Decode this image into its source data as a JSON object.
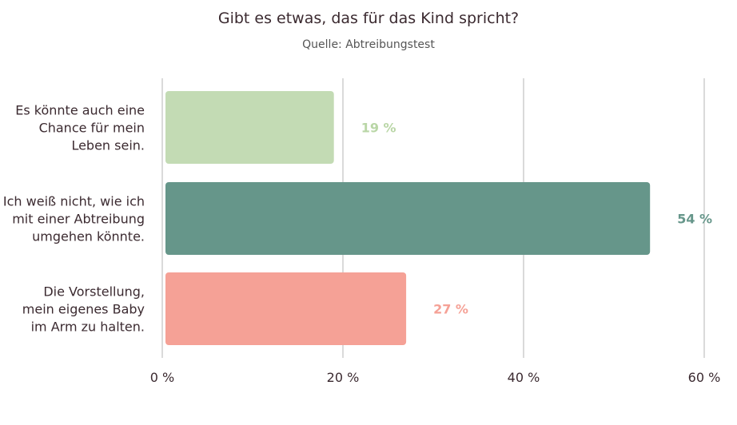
{
  "chart_data": {
    "type": "bar",
    "orientation": "horizontal",
    "title": "Gibt es etwas, das für das Kind spricht?",
    "subtitle": "Quelle: Abtreibungstest",
    "categories": [
      [
        "Es könnte auch eine",
        "Chance für mein",
        "Leben sein."
      ],
      [
        "Ich weiß nicht, wie ich",
        "mit einer Abtreibung",
        "umgehen könnte."
      ],
      [
        "Die Vorstellung,",
        "mein eigenes Baby",
        "im Arm zu halten."
      ]
    ],
    "values": [
      19,
      54,
      27
    ],
    "value_labels": [
      "19 %",
      "54 %",
      "27 %"
    ],
    "colors": [
      "#c3dbb4",
      "#66968a",
      "#f5a196"
    ],
    "label_colors": [
      "#b9d6a6",
      "#66968a",
      "#f5a196"
    ],
    "xlim": [
      0,
      60
    ],
    "ticks": [
      0,
      20,
      40,
      60
    ],
    "tick_labels": [
      "0 %",
      "20 %",
      "40 %",
      "60 %"
    ],
    "grid": true
  }
}
